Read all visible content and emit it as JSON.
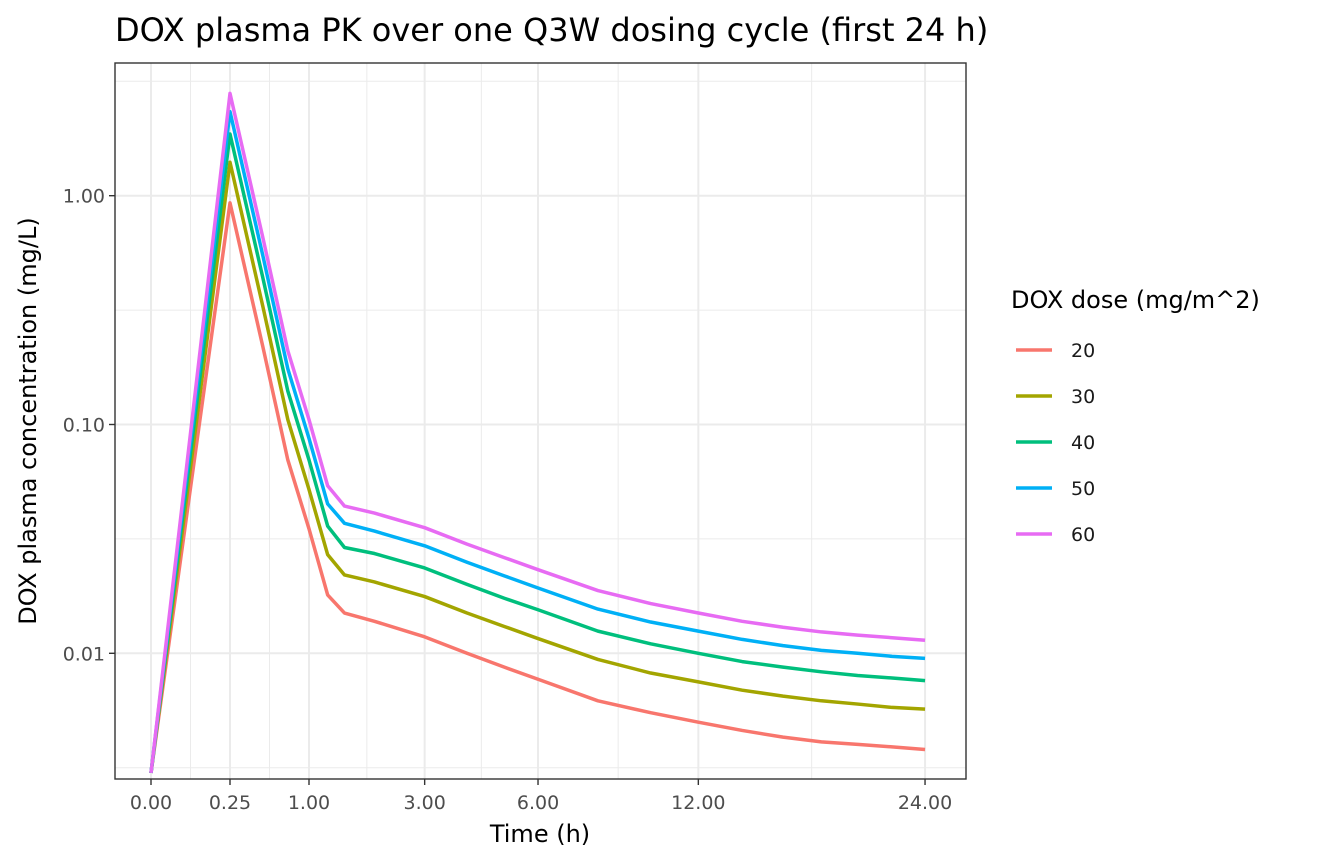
{
  "chart_data": {
    "type": "line",
    "title": "DOX plasma PK over one Q3W dosing cycle (first 24 h)",
    "xlabel": "Time (h)",
    "ylabel": "DOX plasma concentration (mg/L)",
    "x_scale": "sqrt",
    "y_scale": "log10",
    "xlim": [
      0,
      24
    ],
    "ylim": [
      0.003,
      2.8
    ],
    "x_ticks": [
      0,
      0.25,
      1,
      3,
      6,
      12,
      24
    ],
    "x_tick_labels": [
      "0.00",
      "0.25",
      "1.00",
      "3.00",
      "6.00",
      "12.00",
      "24.00"
    ],
    "y_ticks": [
      0.01,
      0.1,
      1
    ],
    "y_tick_labels": [
      "0.01",
      "0.10",
      "1.00"
    ],
    "grid": true,
    "legend_position": "right",
    "legend_title": "DOX dose (mg/m^2)",
    "x": [
      0,
      0.25,
      0.5,
      0.75,
      1,
      1.25,
      1.5,
      2,
      3,
      4,
      5,
      6,
      8,
      10,
      12,
      14,
      16,
      18,
      20,
      22,
      24
    ],
    "series": [
      {
        "name": "20",
        "color": "#F8766D",
        "values": [
          0.003,
          0.93,
          0.22,
          0.07,
          0.035,
          0.018,
          0.015,
          0.0138,
          0.0118,
          0.01,
          0.0087,
          0.0077,
          0.0062,
          0.0055,
          0.005,
          0.0046,
          0.0043,
          0.0041,
          0.004,
          0.0039,
          0.0038
        ]
      },
      {
        "name": "30",
        "color": "#A3A500",
        "values": [
          0.003,
          1.4,
          0.33,
          0.105,
          0.052,
          0.027,
          0.022,
          0.0205,
          0.0177,
          0.015,
          0.0131,
          0.0116,
          0.0094,
          0.0082,
          0.0075,
          0.0069,
          0.0065,
          0.0062,
          0.006,
          0.0058,
          0.0057
        ]
      },
      {
        "name": "40",
        "color": "#00BF7D",
        "values": [
          0.003,
          1.86,
          0.44,
          0.14,
          0.07,
          0.036,
          0.029,
          0.0273,
          0.0236,
          0.02,
          0.0174,
          0.0155,
          0.0125,
          0.011,
          0.01,
          0.0092,
          0.0087,
          0.0083,
          0.008,
          0.0078,
          0.0076
        ]
      },
      {
        "name": "50",
        "color": "#00B0F6",
        "values": [
          0.003,
          2.33,
          0.55,
          0.175,
          0.087,
          0.045,
          0.037,
          0.0342,
          0.0295,
          0.025,
          0.0218,
          0.0193,
          0.0156,
          0.0137,
          0.0125,
          0.0115,
          0.0108,
          0.0103,
          0.01,
          0.0097,
          0.0095
        ]
      },
      {
        "name": "60",
        "color": "#E76BF3",
        "values": [
          0.003,
          2.8,
          0.66,
          0.21,
          0.105,
          0.054,
          0.044,
          0.041,
          0.0354,
          0.03,
          0.0262,
          0.0232,
          0.0188,
          0.0165,
          0.015,
          0.0138,
          0.013,
          0.0124,
          0.012,
          0.0117,
          0.0114
        ]
      }
    ]
  }
}
